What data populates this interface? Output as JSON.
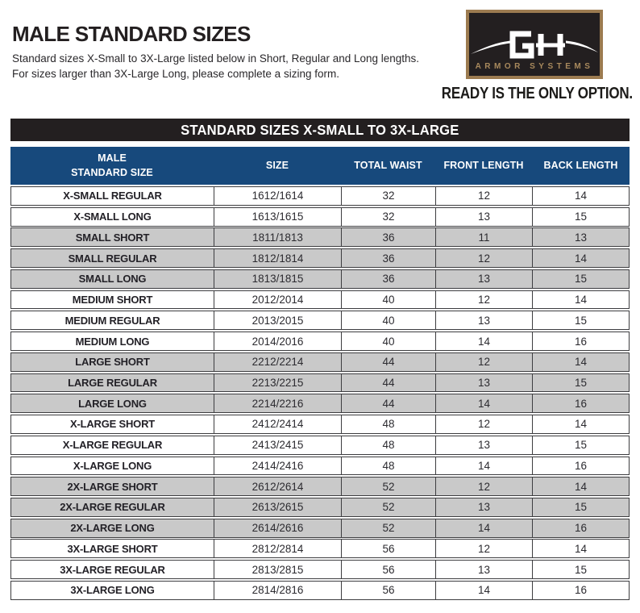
{
  "header": {
    "title": "MALE STANDARD SIZES",
    "subtitle_line1": "Standard sizes X-Small to 3X-Large listed below in Short, Regular and Long lengths.",
    "subtitle_line2": "For sizes larger than 3X-Large Long, please complete a sizing form.",
    "tagline": "READY IS THE ONLY OPTION."
  },
  "logo": {
    "monogram": "GH",
    "brand_name": "ARMOR SYSTEMS"
  },
  "banner": {
    "label": "STANDARD SIZES X-SMALL TO 3X-LARGE"
  },
  "table": {
    "columns": [
      {
        "label": "MALE\nSTANDARD SIZE"
      },
      {
        "label": "SIZE"
      },
      {
        "label": "TOTAL WAIST"
      },
      {
        "label": "FRONT LENGTH"
      },
      {
        "label": "BACK LENGTH"
      }
    ],
    "rows": [
      {
        "cells": [
          "X-SMALL REGULAR",
          "1612/1614",
          "32",
          "12",
          "14"
        ],
        "shaded": false
      },
      {
        "cells": [
          "X-SMALL LONG",
          "1613/1615",
          "32",
          "13",
          "15"
        ],
        "shaded": false
      },
      {
        "cells": [
          "SMALL SHORT",
          "1811/1813",
          "36",
          "11",
          "13"
        ],
        "shaded": true
      },
      {
        "cells": [
          "SMALL REGULAR",
          "1812/1814",
          "36",
          "12",
          "14"
        ],
        "shaded": true
      },
      {
        "cells": [
          "SMALL LONG",
          "1813/1815",
          "36",
          "13",
          "15"
        ],
        "shaded": true
      },
      {
        "cells": [
          "MEDIUM SHORT",
          "2012/2014",
          "40",
          "12",
          "14"
        ],
        "shaded": false
      },
      {
        "cells": [
          "MEDIUM REGULAR",
          "2013/2015",
          "40",
          "13",
          "15"
        ],
        "shaded": false
      },
      {
        "cells": [
          "MEDIUM LONG",
          "2014/2016",
          "40",
          "14",
          "16"
        ],
        "shaded": false
      },
      {
        "cells": [
          "LARGE SHORT",
          "2212/2214",
          "44",
          "12",
          "14"
        ],
        "shaded": true
      },
      {
        "cells": [
          "LARGE REGULAR",
          "2213/2215",
          "44",
          "13",
          "15"
        ],
        "shaded": true
      },
      {
        "cells": [
          "LARGE LONG",
          "2214/2216",
          "44",
          "14",
          "16"
        ],
        "shaded": true
      },
      {
        "cells": [
          "X-LARGE SHORT",
          "2412/2414",
          "48",
          "12",
          "14"
        ],
        "shaded": false
      },
      {
        "cells": [
          "X-LARGE REGULAR",
          "2413/2415",
          "48",
          "13",
          "15"
        ],
        "shaded": false
      },
      {
        "cells": [
          "X-LARGE LONG",
          "2414/2416",
          "48",
          "14",
          "16"
        ],
        "shaded": false
      },
      {
        "cells": [
          "2X-LARGE SHORT",
          "2612/2614",
          "52",
          "12",
          "14"
        ],
        "shaded": true
      },
      {
        "cells": [
          "2X-LARGE REGULAR",
          "2613/2615",
          "52",
          "13",
          "15"
        ],
        "shaded": true
      },
      {
        "cells": [
          "2X-LARGE LONG",
          "2614/2616",
          "52",
          "14",
          "16"
        ],
        "shaded": true
      },
      {
        "cells": [
          "3X-LARGE SHORT",
          "2812/2814",
          "56",
          "12",
          "14"
        ],
        "shaded": false
      },
      {
        "cells": [
          "3X-LARGE REGULAR",
          "2813/2815",
          "56",
          "13",
          "15"
        ],
        "shaded": false
      },
      {
        "cells": [
          "3X-LARGE LONG",
          "2814/2816",
          "56",
          "14",
          "16"
        ],
        "shaded": false
      }
    ]
  },
  "colors": {
    "navy": "#17497c",
    "near_black": "#231f20",
    "row_gray": "#c9c9c9",
    "border": "#3d3d40",
    "tan": "#9c7b50",
    "tan_text": "#a98a5d"
  }
}
